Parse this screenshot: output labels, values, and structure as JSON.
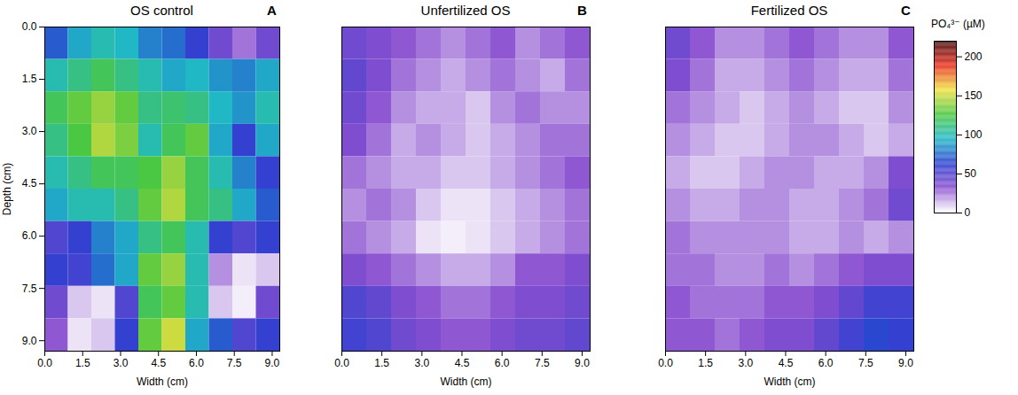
{
  "chart_data": [
    {
      "type": "heatmap",
      "title": "OS control",
      "panel_label": "A",
      "x_label": "Width (cm)",
      "y_label": "Depth (cm)",
      "xlim": [
        0,
        9.3
      ],
      "ylim": [
        0,
        9.3
      ],
      "xticks": [
        {
          "value": 0,
          "label": "0.0"
        },
        1.5,
        {
          "value": 3,
          "label": "3.0"
        },
        4.5,
        {
          "value": 6,
          "label": "6.0"
        },
        7.5,
        {
          "value": 9,
          "label": "9.0"
        }
      ],
      "yticks": [
        {
          "value": 0,
          "label": "0.0"
        },
        1.5,
        {
          "value": 3,
          "label": "3.0"
        },
        4.5,
        {
          "value": 6,
          "label": "6.0"
        },
        7.5,
        {
          "value": 9,
          "label": "9.0"
        }
      ],
      "x_edges": [
        0,
        0.93,
        1.86,
        2.79,
        3.72,
        4.65,
        5.58,
        6.51,
        7.44,
        8.37,
        9.3
      ],
      "y_edges": [
        0,
        0.93,
        1.86,
        2.79,
        3.72,
        4.65,
        5.58,
        6.51,
        7.44,
        8.37,
        9.3
      ],
      "values": [
        [
          70,
          90,
          100,
          95,
          80,
          75,
          60,
          40,
          25,
          40
        ],
        [
          100,
          110,
          120,
          110,
          100,
          90,
          95,
          85,
          80,
          90
        ],
        [
          120,
          130,
          140,
          130,
          110,
          115,
          110,
          95,
          85,
          100
        ],
        [
          110,
          125,
          145,
          135,
          100,
          120,
          130,
          90,
          60,
          90
        ],
        [
          100,
          110,
          120,
          120,
          125,
          140,
          120,
          100,
          80,
          60
        ],
        [
          90,
          100,
          100,
          110,
          130,
          145,
          120,
          110,
          90,
          70
        ],
        [
          50,
          60,
          80,
          90,
          110,
          120,
          100,
          60,
          50,
          60
        ],
        [
          60,
          55,
          75,
          90,
          130,
          140,
          100,
          20,
          5,
          10
        ],
        [
          40,
          10,
          5,
          50,
          120,
          130,
          100,
          10,
          3,
          40
        ],
        [
          30,
          5,
          10,
          60,
          130,
          150,
          90,
          70,
          50,
          60
        ]
      ]
    },
    {
      "type": "heatmap",
      "title": "Unfertilized OS",
      "panel_label": "B",
      "x_label": "Width (cm)",
      "tick_labels": "x",
      "xlim": [
        0,
        9.3
      ],
      "ylim": [
        0,
        9.3
      ],
      "xticks": [
        {
          "value": 0,
          "label": "0.0"
        },
        1.5,
        {
          "value": 3,
          "label": "3.0"
        },
        4.5,
        {
          "value": 6,
          "label": "6.0"
        },
        7.5,
        {
          "value": 9,
          "label": "9.0"
        }
      ],
      "x_edges": [
        0,
        0.93,
        1.86,
        2.79,
        3.72,
        4.65,
        5.58,
        6.51,
        7.44,
        8.37,
        9.3
      ],
      "y_edges": [
        0,
        0.93,
        1.86,
        2.79,
        3.72,
        4.65,
        5.58,
        6.51,
        7.44,
        8.37,
        9.3
      ],
      "values": [
        [
          40,
          35,
          30,
          25,
          20,
          25,
          30,
          20,
          25,
          30
        ],
        [
          45,
          35,
          25,
          20,
          15,
          20,
          25,
          20,
          15,
          25
        ],
        [
          40,
          30,
          20,
          15,
          15,
          10,
          20,
          25,
          20,
          20
        ],
        [
          35,
          25,
          15,
          20,
          15,
          10,
          15,
          20,
          25,
          25
        ],
        [
          25,
          20,
          15,
          15,
          10,
          10,
          15,
          20,
          25,
          30
        ],
        [
          20,
          25,
          20,
          10,
          5,
          5,
          10,
          15,
          20,
          25
        ],
        [
          25,
          20,
          15,
          5,
          3,
          5,
          10,
          15,
          20,
          25
        ],
        [
          35,
          30,
          25,
          20,
          15,
          15,
          20,
          30,
          30,
          35
        ],
        [
          50,
          45,
          35,
          30,
          25,
          25,
          30,
          35,
          35,
          40
        ],
        [
          55,
          50,
          40,
          35,
          30,
          30,
          35,
          40,
          40,
          45
        ]
      ]
    },
    {
      "type": "heatmap",
      "title": "Fertilized OS",
      "panel_label": "C",
      "x_label": "Width (cm)",
      "tick_labels": "x",
      "xlim": [
        0,
        9.3
      ],
      "ylim": [
        0,
        9.3
      ],
      "xticks": [
        {
          "value": 0,
          "label": "0.0"
        },
        1.5,
        {
          "value": 3,
          "label": "3.0"
        },
        4.5,
        {
          "value": 6,
          "label": "6.0"
        },
        7.5,
        {
          "value": 9,
          "label": "9.0"
        }
      ],
      "x_edges": [
        0,
        0.93,
        1.86,
        2.79,
        3.72,
        4.65,
        5.58,
        6.51,
        7.44,
        8.37,
        9.3
      ],
      "y_edges": [
        0,
        0.93,
        1.86,
        2.79,
        3.72,
        4.65,
        5.58,
        6.51,
        7.44,
        8.37,
        9.3
      ],
      "values": [
        [
          40,
          30,
          20,
          20,
          25,
          30,
          25,
          20,
          20,
          30
        ],
        [
          35,
          25,
          15,
          15,
          20,
          25,
          20,
          15,
          15,
          25
        ],
        [
          25,
          20,
          15,
          10,
          15,
          20,
          15,
          10,
          10,
          20
        ],
        [
          20,
          15,
          10,
          10,
          15,
          20,
          20,
          15,
          10,
          15
        ],
        [
          15,
          10,
          10,
          15,
          20,
          20,
          15,
          15,
          20,
          35
        ],
        [
          20,
          15,
          15,
          20,
          20,
          15,
          15,
          20,
          25,
          40
        ],
        [
          25,
          20,
          20,
          20,
          20,
          15,
          15,
          20,
          15,
          20
        ],
        [
          25,
          25,
          20,
          20,
          25,
          20,
          25,
          30,
          35,
          35
        ],
        [
          30,
          25,
          25,
          25,
          30,
          30,
          35,
          45,
          55,
          55
        ],
        [
          30,
          30,
          25,
          30,
          35,
          35,
          45,
          55,
          65,
          60
        ]
      ],
      "colorbar": {
        "label": "PO₄³⁻ (µM)",
        "lim": [
          0,
          220
        ],
        "ticks": [
          0,
          50,
          100,
          150,
          200
        ],
        "colors": [
          "#ffffff",
          "#8a4fcf",
          "#2a3fd0",
          "#20b8c8",
          "#4cc840",
          "#f0e040",
          "#e82a1a",
          "#3a0808"
        ]
      }
    }
  ]
}
